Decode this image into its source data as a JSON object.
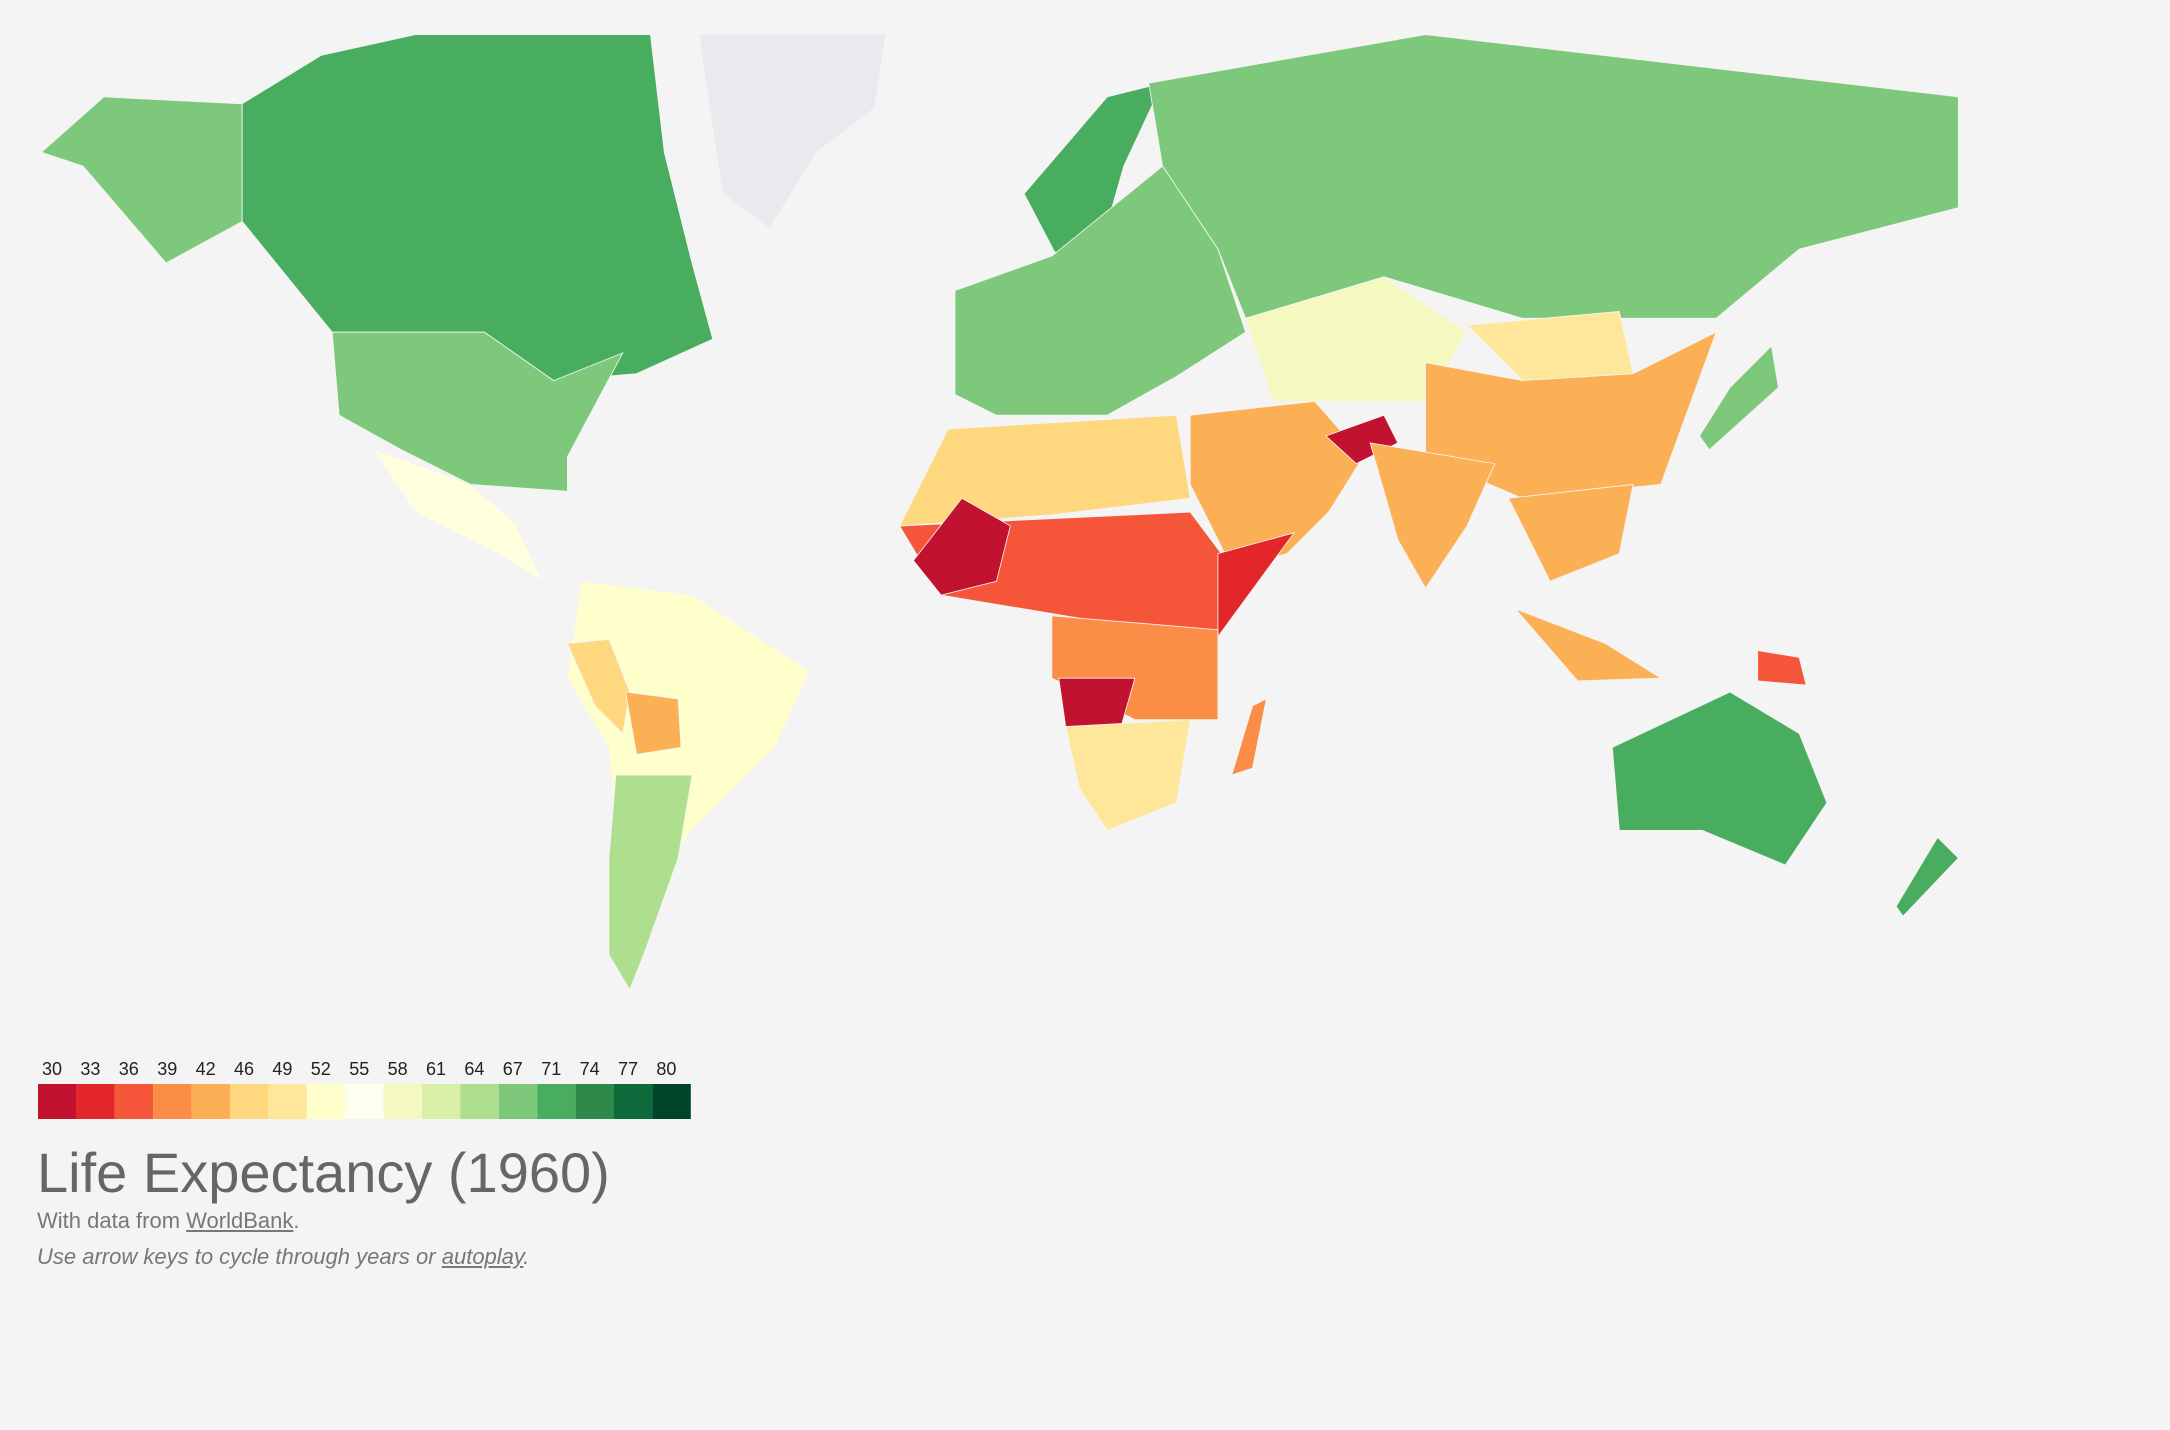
{
  "legend": {
    "ticks": [
      30,
      33,
      36,
      39,
      42,
      46,
      49,
      52,
      55,
      58,
      61,
      64,
      67,
      71,
      74,
      77,
      80
    ],
    "colors": [
      "#c1122f",
      "#e3262a",
      "#f5563a",
      "#fb8d46",
      "#fcb055",
      "#fed77e",
      "#fee79b",
      "#ffffcc",
      "#fffff0",
      "#f3f9c0",
      "#d9eea6",
      "#addf8e",
      "#7ec87c",
      "#49ad5f",
      "#2e8a48",
      "#0d6a3a",
      "#004529"
    ]
  },
  "title": "Life Expectancy (1960)",
  "source": {
    "prefix": "With data from",
    "link": "WorldBank",
    "suffix": "."
  },
  "hint": {
    "text": "Use arrow keys to cycle through years or",
    "link": "autoplay",
    "suffix": "."
  }
}
